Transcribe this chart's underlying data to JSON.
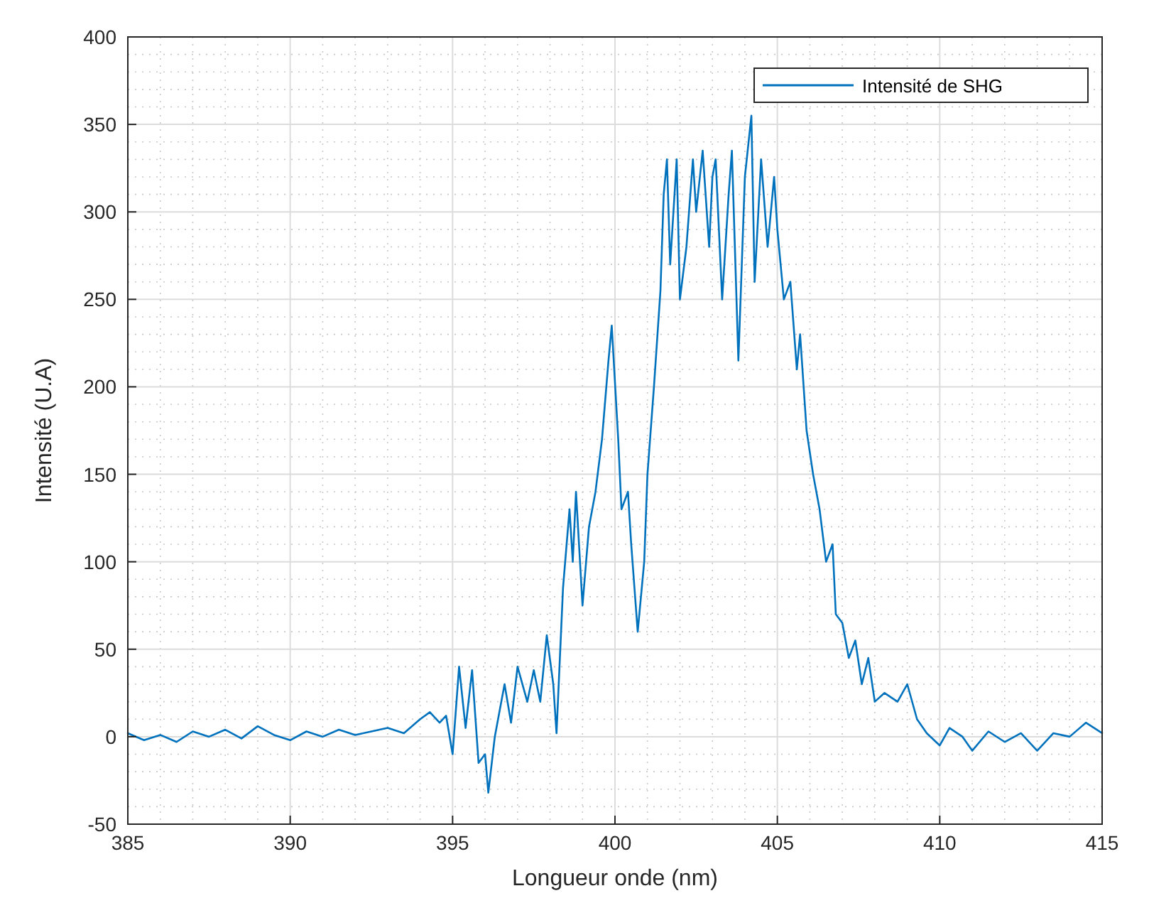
{
  "chart_data": {
    "type": "line",
    "xlabel": "Longueur onde (nm)",
    "ylabel": "Intensité (U.A)",
    "xlim": [
      385,
      415
    ],
    "ylim": [
      -50,
      400
    ],
    "xticks": [
      385,
      390,
      395,
      400,
      405,
      410,
      415
    ],
    "yticks": [
      -50,
      0,
      50,
      100,
      150,
      200,
      250,
      300,
      350,
      400
    ],
    "grid": true,
    "legend": "top right",
    "series": [
      {
        "name": "Intensité de SHG",
        "color": "#0072bd",
        "x": [
          385,
          385.5,
          386,
          386.5,
          387,
          387.5,
          388,
          388.5,
          389,
          389.5,
          390,
          390.5,
          391,
          391.5,
          392,
          392.5,
          393,
          393.5,
          394,
          394.3,
          394.6,
          394.8,
          395,
          395.2,
          395.4,
          395.6,
          395.8,
          396,
          396.1,
          396.3,
          396.6,
          396.8,
          397,
          397.3,
          397.5,
          397.7,
          397.9,
          398.1,
          398.2,
          398.4,
          398.6,
          398.7,
          398.8,
          399,
          399.2,
          399.4,
          399.6,
          399.8,
          399.9,
          400.1,
          400.2,
          400.4,
          400.5,
          400.7,
          400.9,
          401,
          401.2,
          401.4,
          401.5,
          401.6,
          401.7,
          401.9,
          402,
          402.2,
          402.4,
          402.5,
          402.7,
          402.9,
          403,
          403.1,
          403.3,
          403.5,
          403.6,
          403.8,
          404,
          404.2,
          404.3,
          404.5,
          404.7,
          404.9,
          405,
          405.2,
          405.4,
          405.6,
          405.7,
          405.9,
          406.1,
          406.3,
          406.5,
          406.7,
          406.8,
          407,
          407.2,
          407.4,
          407.6,
          407.8,
          408,
          408.3,
          408.7,
          409,
          409.3,
          409.6,
          410,
          410.3,
          410.7,
          411,
          411.5,
          412,
          412.5,
          413,
          413.5,
          414,
          414.5,
          415
        ],
        "values": [
          2,
          -2,
          1,
          -3,
          3,
          0,
          4,
          -1,
          6,
          1,
          -2,
          3,
          0,
          4,
          1,
          3,
          5,
          2,
          10,
          14,
          8,
          12,
          -10,
          40,
          5,
          38,
          -15,
          -10,
          -32,
          0,
          30,
          8,
          40,
          20,
          38,
          20,
          58,
          30,
          2,
          85,
          130,
          100,
          140,
          75,
          120,
          140,
          170,
          215,
          235,
          170,
          130,
          140,
          110,
          60,
          100,
          150,
          200,
          255,
          310,
          330,
          270,
          330,
          250,
          280,
          330,
          300,
          335,
          280,
          320,
          330,
          250,
          310,
          335,
          215,
          320,
          355,
          260,
          330,
          280,
          320,
          290,
          250,
          260,
          210,
          230,
          175,
          150,
          130,
          100,
          110,
          70,
          65,
          45,
          55,
          30,
          45,
          20,
          25,
          20,
          30,
          10,
          2,
          -5,
          5,
          0,
          -8,
          3,
          -3,
          2,
          -8,
          2,
          0,
          8,
          2
        ]
      }
    ]
  }
}
